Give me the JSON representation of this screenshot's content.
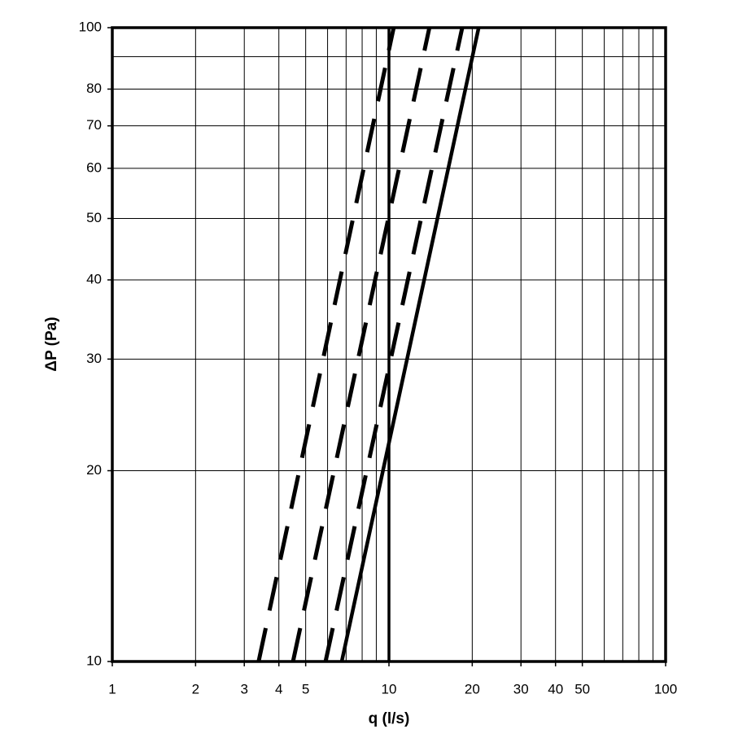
{
  "chart_data": {
    "type": "line",
    "xlabel": "q (l/s)",
    "ylabel": "ΔP (Pa)",
    "log_x": true,
    "log_y": true,
    "grid": true,
    "xlim": [
      1,
      100
    ],
    "ylim": [
      10,
      100
    ],
    "xticks": [
      1,
      2,
      3,
      4,
      5,
      10,
      20,
      30,
      40,
      50,
      100
    ],
    "yticks": [
      10,
      20,
      30,
      40,
      50,
      60,
      70,
      80,
      100
    ],
    "xgrid": [
      2,
      3,
      4,
      5,
      6,
      7,
      8,
      9,
      10,
      20,
      30,
      40,
      50,
      60,
      70,
      80,
      90
    ],
    "ygrid": [
      20,
      30,
      40,
      50,
      60,
      70,
      80,
      90
    ],
    "series": [
      {
        "color": "#000000",
        "dashed": true,
        "x": [
          3.38,
          10.4
        ],
        "values": [
          10,
          100
        ]
      },
      {
        "color": "#000000",
        "dashed": true,
        "x": [
          4.5,
          14.0
        ],
        "values": [
          10,
          100
        ]
      },
      {
        "color": "#000000",
        "dashed": true,
        "x": [
          5.9,
          18.4
        ],
        "values": [
          10,
          100
        ]
      },
      {
        "color": "#000000",
        "dashed": false,
        "x": [
          6.75,
          21.1
        ],
        "values": [
          10,
          100
        ]
      }
    ]
  }
}
